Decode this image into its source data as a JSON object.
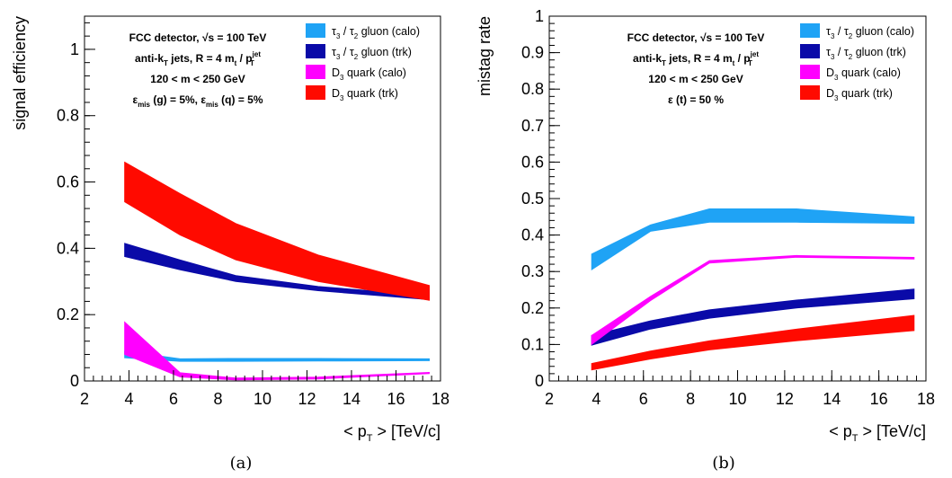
{
  "colors": {
    "tau_calo": "#1fa3f5",
    "tau_trk": "#0a0aa8",
    "d3_calo": "#ff00ff",
    "d3_trk": "#ff0a00"
  },
  "chart_data": [
    {
      "type": "area",
      "caption": "(a)",
      "xlabel": "< p_T > [TeV/c]",
      "ylabel": "signal efficiency",
      "xlim": [
        2,
        18
      ],
      "ylim": [
        0,
        1.1
      ],
      "xticks": [
        2,
        4,
        6,
        8,
        10,
        12,
        14,
        16,
        18
      ],
      "yticks": [
        0,
        0.2,
        0.4,
        0.6,
        0.8,
        1
      ],
      "ytick_labels": [
        "0",
        "0.2",
        "0.4",
        "0.6",
        "0.8",
        "1"
      ],
      "grid": false,
      "info_lines": [
        "FCC detector,  √s = 100 TeV",
        "anti-k_T jets, R = 4 m_t / p_T^jet",
        "120 < m < 250 GeV",
        "ε_mis (g) = 5%,  ε_mis (q) = 5%"
      ],
      "series": [
        {
          "name": "τ3 / τ2 gluon (calo)",
          "legend_parts": [
            "τ",
            "3",
            " / τ",
            "2",
            " gluon (calo)"
          ],
          "color_key": "tau_calo",
          "x": [
            3.8,
            6.3,
            8.8,
            12.5,
            17.5
          ],
          "low": [
            0.07,
            0.059,
            0.059,
            0.06,
            0.061
          ],
          "high": [
            0.09,
            0.067,
            0.068,
            0.068,
            0.067
          ]
        },
        {
          "name": "τ3 / τ2 gluon (trk)",
          "legend_parts": [
            "τ",
            "3",
            " / τ",
            "2",
            " gluon (trk)"
          ],
          "color_key": "tau_trk",
          "x": [
            3.8,
            6.3,
            8.8,
            12.5,
            17.5
          ],
          "low": [
            0.375,
            0.335,
            0.3,
            0.272,
            0.245
          ],
          "high": [
            0.415,
            0.365,
            0.318,
            0.285,
            0.258
          ]
        },
        {
          "name": "D3 quark (calo)",
          "legend_parts": [
            "D",
            "3",
            " quark (calo)",
            "",
            ""
          ],
          "color_key": "d3_calo",
          "x": [
            3.8,
            6.3,
            8.8,
            12.5,
            17.5
          ],
          "low": [
            0.08,
            0.012,
            0.003,
            0.006,
            0.022
          ],
          "high": [
            0.178,
            0.025,
            0.009,
            0.012,
            0.026
          ]
        },
        {
          "name": "D3 quark (trk)",
          "legend_parts": [
            "D",
            "3",
            " quark (trk)",
            "",
            ""
          ],
          "color_key": "d3_trk",
          "x": [
            3.8,
            6.3,
            8.8,
            12.5,
            17.5
          ],
          "low": [
            0.54,
            0.44,
            0.365,
            0.3,
            0.243
          ],
          "high": [
            0.66,
            0.565,
            0.475,
            0.38,
            0.288
          ]
        }
      ]
    },
    {
      "type": "area",
      "caption": "(b)",
      "xlabel": "< p_T > [TeV/c]",
      "ylabel": "mistag rate",
      "xlim": [
        2,
        18
      ],
      "ylim": [
        0,
        1
      ],
      "xticks": [
        2,
        4,
        6,
        8,
        10,
        12,
        14,
        16,
        18
      ],
      "yticks": [
        0,
        0.1,
        0.2,
        0.3,
        0.4,
        0.5,
        0.6,
        0.7,
        0.8,
        0.9,
        1
      ],
      "ytick_labels": [
        "0",
        "0.1",
        "0.2",
        "0.3",
        "0.4",
        "0.5",
        "0.6",
        "0.7",
        "0.8",
        "0.9",
        "1"
      ],
      "grid": false,
      "info_lines": [
        "FCC detector,  √s = 100 TeV",
        "anti-k_T jets, R = 4 m_t / p_T^jet",
        "120 < m < 250 GeV",
        "ε (t) = 50 %"
      ],
      "series": [
        {
          "name": "τ3 / τ2 gluon (calo)",
          "legend_parts": [
            "τ",
            "3",
            " / τ",
            "2",
            " gluon (calo)"
          ],
          "color_key": "tau_calo",
          "x": [
            3.8,
            6.3,
            8.8,
            12.5,
            17.5
          ],
          "low": [
            0.305,
            0.41,
            0.435,
            0.435,
            0.432
          ],
          "high": [
            0.348,
            0.428,
            0.472,
            0.472,
            0.45
          ]
        },
        {
          "name": "τ3 / τ2 gluon (trk)",
          "legend_parts": [
            "τ",
            "3",
            " / τ",
            "2",
            " gluon (trk)"
          ],
          "color_key": "tau_trk",
          "x": [
            3.8,
            6.3,
            8.8,
            12.5,
            17.5
          ],
          "low": [
            0.098,
            0.142,
            0.172,
            0.2,
            0.225
          ],
          "high": [
            0.125,
            0.165,
            0.195,
            0.222,
            0.252
          ]
        },
        {
          "name": "D3 quark (calo)",
          "legend_parts": [
            "D",
            "3",
            " quark (calo)",
            "",
            ""
          ],
          "color_key": "d3_calo",
          "x": [
            3.8,
            6.3,
            8.8,
            12.5,
            17.5
          ],
          "low": [
            0.1,
            0.22,
            0.323,
            0.339,
            0.334
          ],
          "high": [
            0.125,
            0.232,
            0.33,
            0.344,
            0.339
          ]
        },
        {
          "name": "D3 quark (trk)",
          "legend_parts": [
            "D",
            "3",
            " quark (trk)",
            "",
            ""
          ],
          "color_key": "d3_trk",
          "x": [
            3.8,
            6.3,
            8.8,
            12.5,
            17.5
          ],
          "low": [
            0.03,
            0.06,
            0.085,
            0.11,
            0.138
          ],
          "high": [
            0.048,
            0.082,
            0.11,
            0.142,
            0.18
          ]
        }
      ]
    }
  ]
}
